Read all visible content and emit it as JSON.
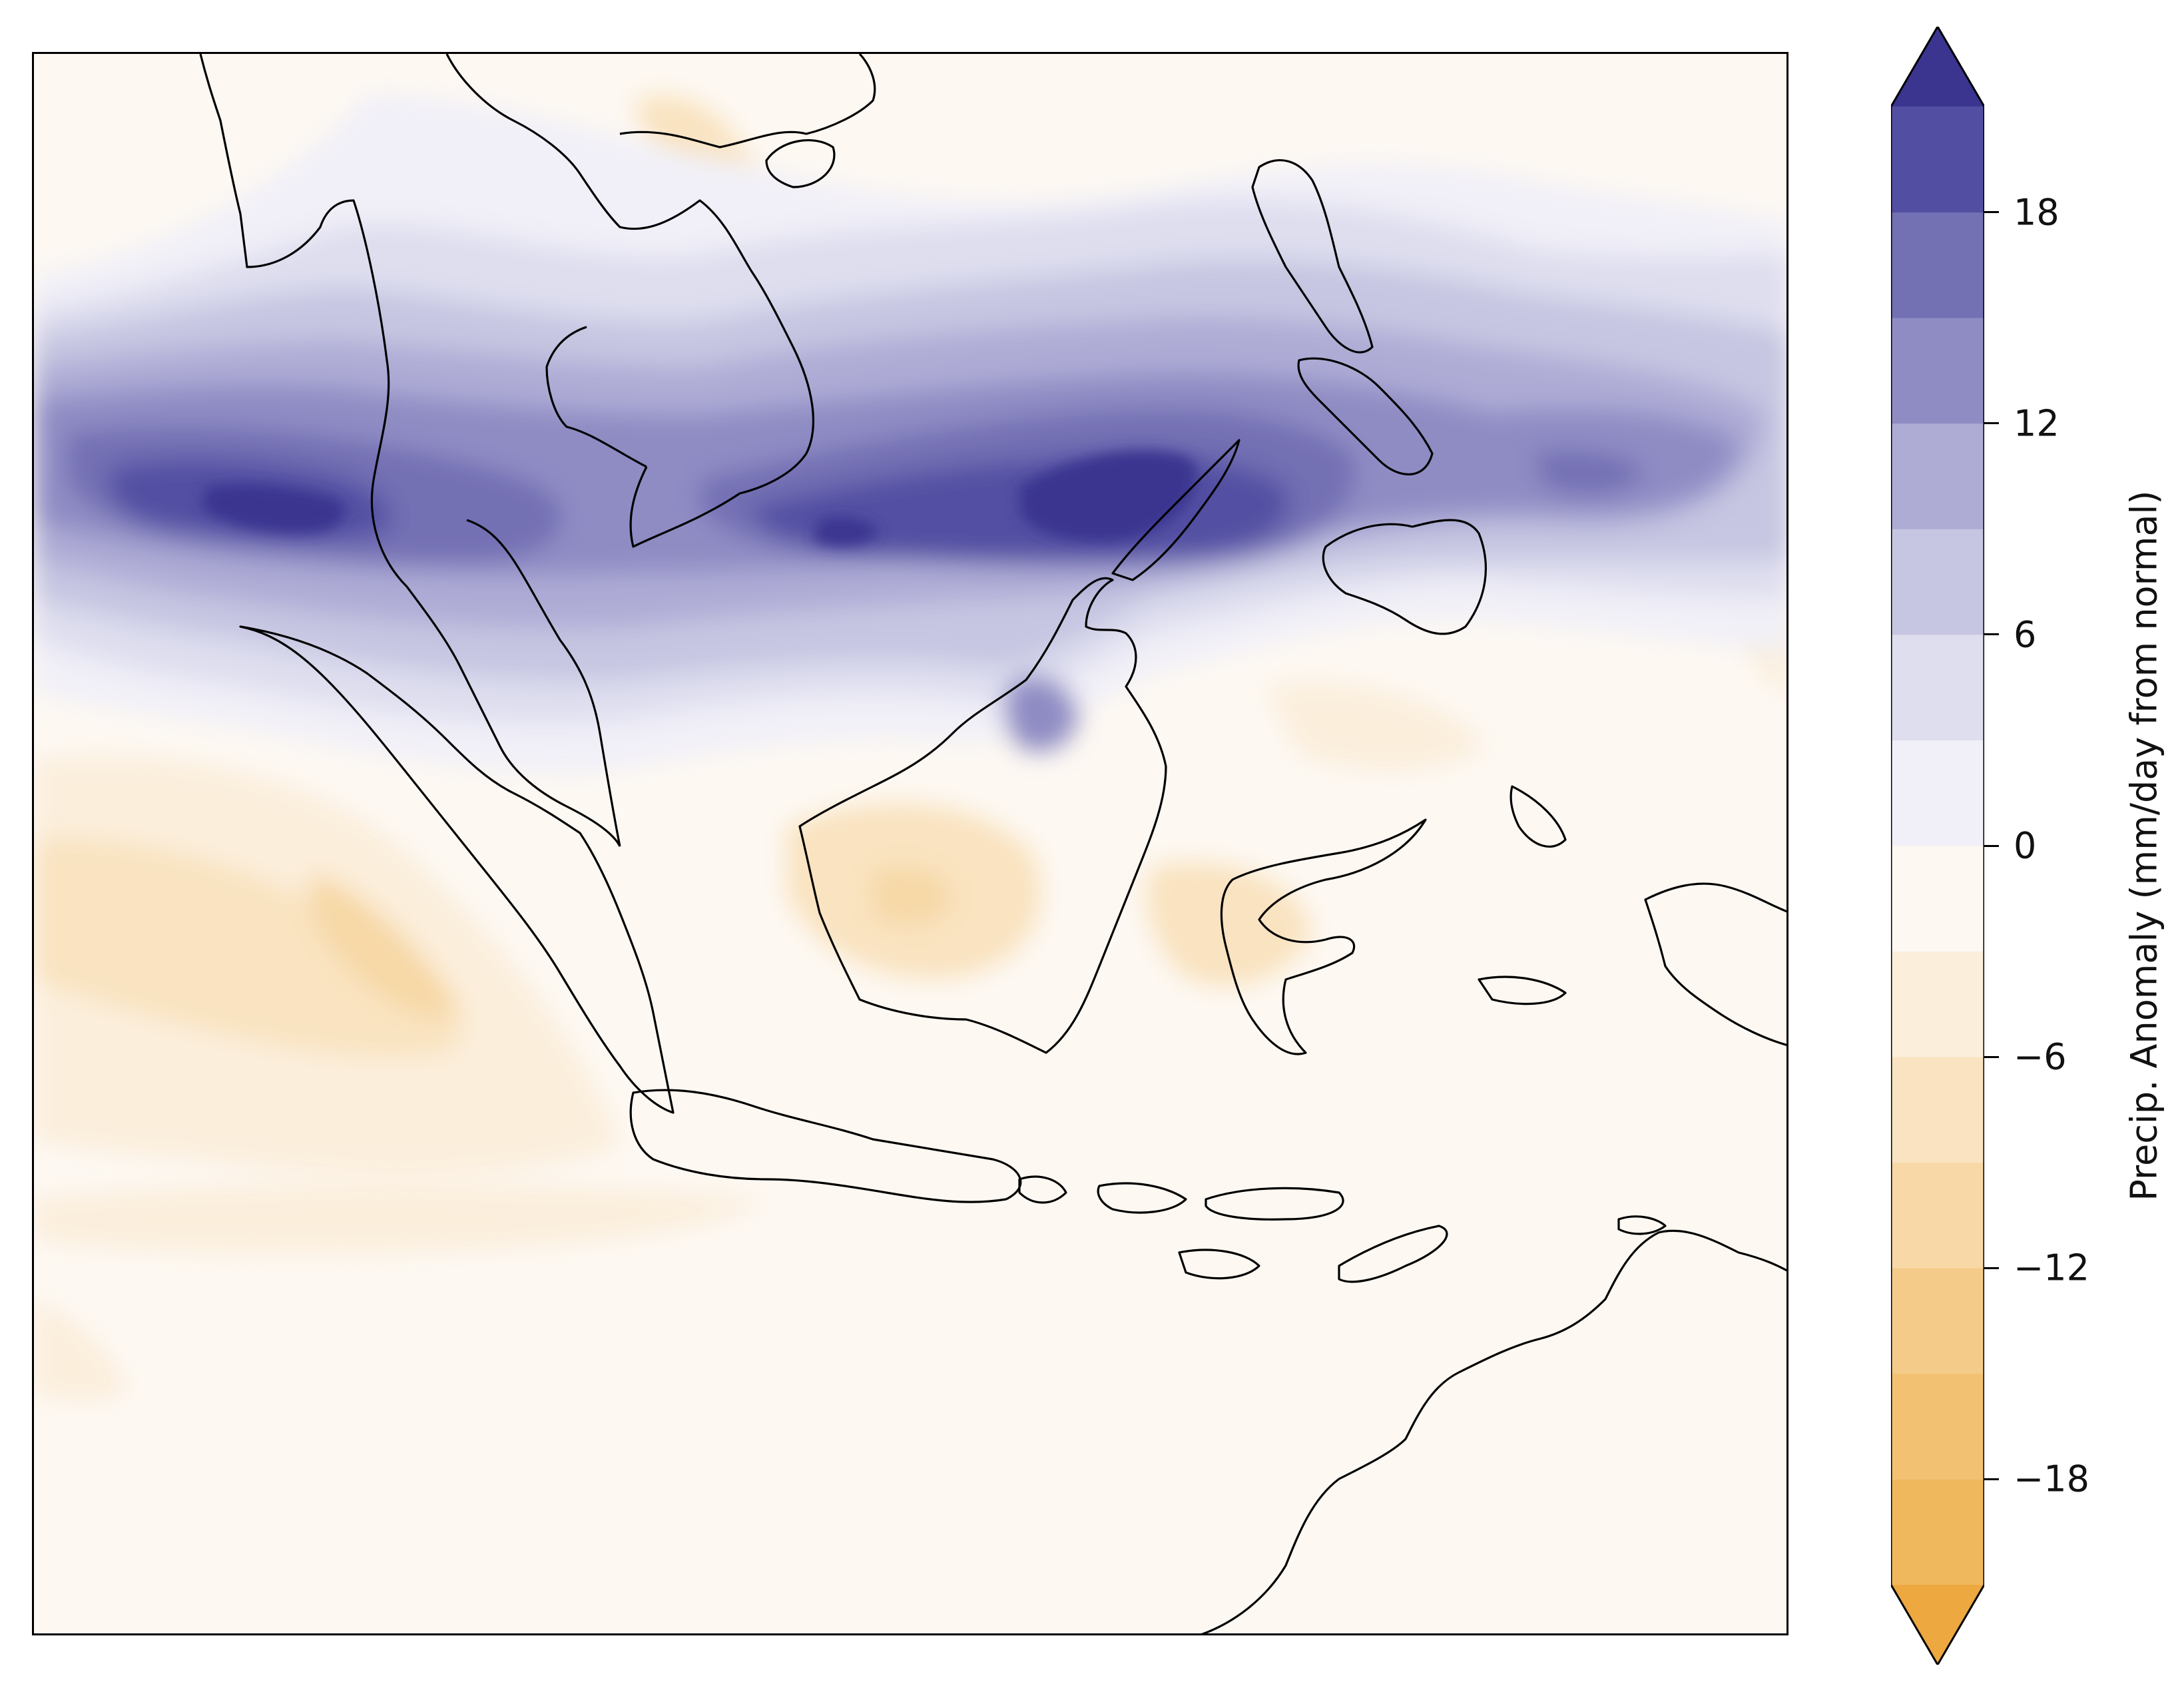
{
  "map": {
    "region": "Maritime Continent / Southeast Asia",
    "type": "filled contour precipitation anomaly map with coastlines"
  },
  "colorbar": {
    "label": "Precip. Anomaly (mm/day from normal)",
    "ticks": [
      "18",
      "12",
      "6",
      "0",
      "−6",
      "−12",
      "−18"
    ],
    "tick_values": [
      18,
      12,
      6,
      0,
      -6,
      -12,
      -18
    ],
    "levels": [
      -21,
      -18,
      -15,
      -12,
      -9,
      -6,
      -3,
      0,
      3,
      6,
      9,
      12,
      15,
      18,
      21
    ],
    "extend": "both",
    "colors": {
      "below_min": "#eda840",
      "negative": [
        "#f0b85c",
        "#f2c172",
        "#f4cb88",
        "#f7d8a6",
        "#f9e3c0",
        "#fbeedb",
        "#fdf8f2"
      ],
      "positive": [
        "#f1f0f8",
        "#dedeef",
        "#c6c6e2",
        "#aeacd5",
        "#8f8cc4",
        "#7370b4",
        "#524fa3"
      ],
      "above_max": "#3b3590"
    }
  }
}
